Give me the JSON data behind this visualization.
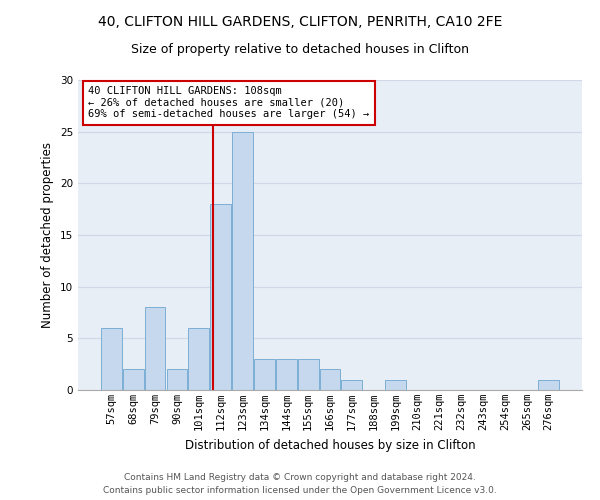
{
  "title1": "40, CLIFTON HILL GARDENS, CLIFTON, PENRITH, CA10 2FE",
  "title2": "Size of property relative to detached houses in Clifton",
  "xlabel": "Distribution of detached houses by size in Clifton",
  "ylabel": "Number of detached properties",
  "categories": [
    "57sqm",
    "68sqm",
    "79sqm",
    "90sqm",
    "101sqm",
    "112sqm",
    "123sqm",
    "134sqm",
    "144sqm",
    "155sqm",
    "166sqm",
    "177sqm",
    "188sqm",
    "199sqm",
    "210sqm",
    "221sqm",
    "232sqm",
    "243sqm",
    "254sqm",
    "265sqm",
    "276sqm"
  ],
  "values": [
    6,
    2,
    8,
    2,
    6,
    18,
    25,
    3,
    3,
    3,
    2,
    1,
    0,
    1,
    0,
    0,
    0,
    0,
    0,
    0,
    1
  ],
  "bar_color": "#c5d8ed",
  "bar_edge_color": "#7bafd4",
  "annotation_text_line1": "40 CLIFTON HILL GARDENS: 108sqm",
  "annotation_text_line2": "← 26% of detached houses are smaller (20)",
  "annotation_text_line3": "69% of semi-detached houses are larger (54) →",
  "annotation_box_facecolor": "#ffffff",
  "annotation_box_edgecolor": "#cc0000",
  "red_line_color": "#cc0000",
  "footer1": "Contains HM Land Registry data © Crown copyright and database right 2024.",
  "footer2": "Contains public sector information licensed under the Open Government Licence v3.0.",
  "ylim": [
    0,
    30
  ],
  "yticks": [
    0,
    5,
    10,
    15,
    20,
    25,
    30
  ],
  "grid_color": "#d0d8e8",
  "background_color": "#e8eef6",
  "title1_fontsize": 10,
  "title2_fontsize": 9,
  "xlabel_fontsize": 8.5,
  "ylabel_fontsize": 8.5,
  "tick_fontsize": 7.5,
  "annotation_fontsize": 7.5,
  "footer_fontsize": 6.5
}
